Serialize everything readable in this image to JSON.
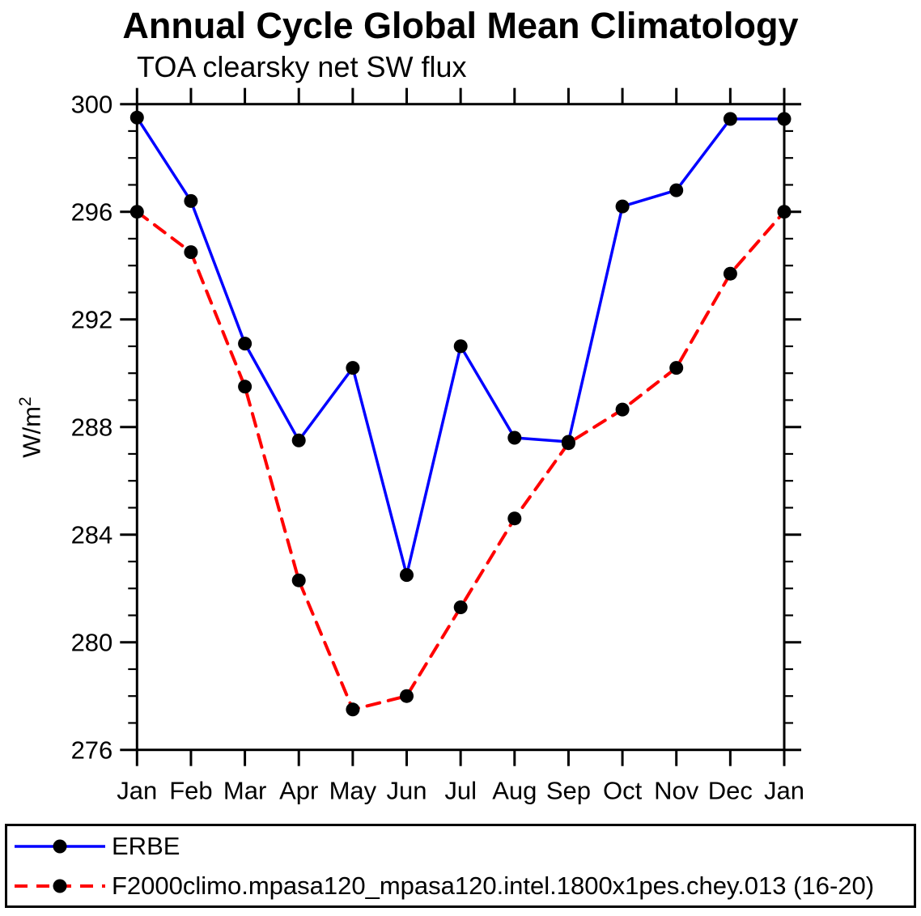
{
  "chart_data": {
    "type": "line",
    "title": "Annual Cycle Global Mean Climatology",
    "subtitle": "TOA clearsky net SW flux",
    "ylabel_base": "W/m",
    "ylabel_sup": "2",
    "months": [
      "Jan",
      "Feb",
      "Mar",
      "Apr",
      "May",
      "Jun",
      "Jul",
      "Aug",
      "Sep",
      "Oct",
      "Nov",
      "Dec",
      "Jan"
    ],
    "ylim": [
      276,
      300
    ],
    "ytick_major_step": 4,
    "ytick_minor_step": 1,
    "ytick_labels": [
      "276",
      "280",
      "284",
      "288",
      "292",
      "296",
      "300"
    ],
    "grid": false,
    "legend_position": "bottom",
    "colors": {
      "erbe_line": "#0000ff",
      "model_line": "#ff0000",
      "marker": "#000000",
      "axis": "#000000"
    },
    "series": [
      {
        "name": "ERBE",
        "style": "solid",
        "color": "#0000ff",
        "marker": "circle",
        "values": [
          299.5,
          296.4,
          291.1,
          287.5,
          290.2,
          282.5,
          291.0,
          287.6,
          287.45,
          296.2,
          296.8,
          299.45,
          299.45
        ]
      },
      {
        "name": "F2000climo.mpasa120_mpasa120.intel.1800x1pes.chey.013 (16-20)",
        "style": "dashed",
        "color": "#ff0000",
        "marker": "circle",
        "values": [
          296.0,
          294.5,
          289.5,
          282.3,
          277.5,
          278.0,
          281.3,
          284.6,
          287.4,
          288.65,
          290.2,
          293.7,
          296.0
        ]
      }
    ]
  }
}
